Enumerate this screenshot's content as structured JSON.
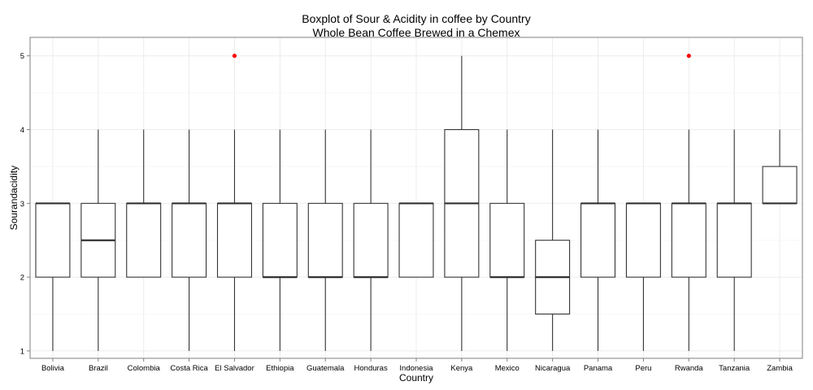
{
  "chart_data": {
    "type": "boxplot",
    "title": "Boxplot of Sour & Acidity in coffee by Country",
    "subtitle": "Whole Bean Coffee Brewed in a Chemex",
    "xlabel": "Country",
    "ylabel": "Sourandacidity",
    "ylim": [
      0.9,
      5.25
    ],
    "yticks": [
      1,
      2,
      3,
      4,
      5
    ],
    "grid": true,
    "outlier_color": "#ff0000",
    "categories": [
      "Bolivia",
      "Brazil",
      "Colombia",
      "Costa Rica",
      "El Salvador",
      "Ethiopia",
      "Guatemala",
      "Honduras",
      "Indonesia",
      "Kenya",
      "Mexico",
      "Nicaragua",
      "Panama",
      "Peru",
      "Rwanda",
      "Tanzania",
      "Zambia"
    ],
    "boxes": [
      {
        "min": 1,
        "q1": 2,
        "median": 3,
        "q3": 3,
        "max": 3,
        "outliers": []
      },
      {
        "min": 1,
        "q1": 2,
        "median": 2.5,
        "q3": 3,
        "max": 4,
        "outliers": []
      },
      {
        "min": 2,
        "q1": 2,
        "median": 3,
        "q3": 3,
        "max": 4,
        "outliers": []
      },
      {
        "min": 1,
        "q1": 2,
        "median": 3,
        "q3": 3,
        "max": 4,
        "outliers": []
      },
      {
        "min": 1,
        "q1": 2,
        "median": 3,
        "q3": 3,
        "max": 4,
        "outliers": [
          5
        ]
      },
      {
        "min": 1,
        "q1": 2,
        "median": 2,
        "q3": 3,
        "max": 4,
        "outliers": []
      },
      {
        "min": 1,
        "q1": 2,
        "median": 2,
        "q3": 3,
        "max": 4,
        "outliers": []
      },
      {
        "min": 1,
        "q1": 2,
        "median": 2,
        "q3": 3,
        "max": 4,
        "outliers": []
      },
      {
        "min": 2,
        "q1": 2,
        "median": 3,
        "q3": 3,
        "max": 3,
        "outliers": []
      },
      {
        "min": 1,
        "q1": 2,
        "median": 3,
        "q3": 4,
        "max": 5,
        "outliers": []
      },
      {
        "min": 1,
        "q1": 2,
        "median": 2,
        "q3": 3,
        "max": 4,
        "outliers": []
      },
      {
        "min": 1,
        "q1": 1.5,
        "median": 2,
        "q3": 2.5,
        "max": 4,
        "outliers": []
      },
      {
        "min": 1,
        "q1": 2,
        "median": 3,
        "q3": 3,
        "max": 4,
        "outliers": []
      },
      {
        "min": 1,
        "q1": 2,
        "median": 3,
        "q3": 3,
        "max": 3,
        "outliers": []
      },
      {
        "min": 1,
        "q1": 2,
        "median": 3,
        "q3": 3,
        "max": 4,
        "outliers": [
          5
        ]
      },
      {
        "min": 1,
        "q1": 2,
        "median": 3,
        "q3": 3,
        "max": 4,
        "outliers": []
      },
      {
        "min": 3,
        "q1": 3,
        "median": 3,
        "q3": 3.5,
        "max": 4,
        "outliers": []
      }
    ]
  }
}
